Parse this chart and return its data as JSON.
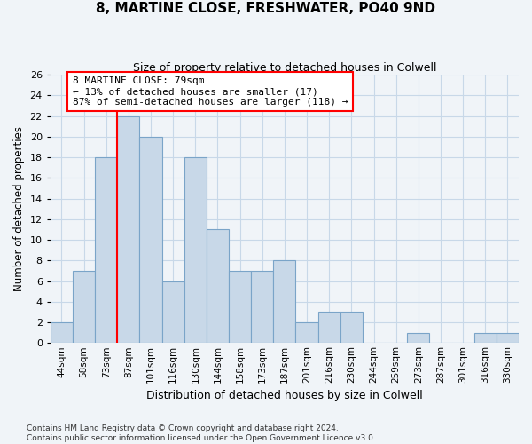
{
  "title": "8, MARTINE CLOSE, FRESHWATER, PO40 9ND",
  "subtitle": "Size of property relative to detached houses in Colwell",
  "xlabel": "Distribution of detached houses by size in Colwell",
  "ylabel": "Number of detached properties",
  "categories": [
    "44sqm",
    "58sqm",
    "73sqm",
    "87sqm",
    "101sqm",
    "116sqm",
    "130sqm",
    "144sqm",
    "158sqm",
    "173sqm",
    "187sqm",
    "201sqm",
    "216sqm",
    "230sqm",
    "244sqm",
    "259sqm",
    "273sqm",
    "287sqm",
    "301sqm",
    "316sqm",
    "330sqm"
  ],
  "values": [
    2,
    7,
    18,
    22,
    20,
    6,
    18,
    11,
    7,
    7,
    8,
    2,
    3,
    3,
    0,
    0,
    1,
    0,
    0,
    1,
    1
  ],
  "bar_color": "#c8d8e8",
  "bar_edge_color": "#7aa4c8",
  "grid_color": "#c8d8e8",
  "red_line_x": 2.5,
  "annotation_text_line1": "8 MARTINE CLOSE: 79sqm",
  "annotation_text_line2": "← 13% of detached houses are smaller (17)",
  "annotation_text_line3": "87% of semi-detached houses are larger (118) →",
  "annotation_box_color": "white",
  "annotation_box_edge_color": "red",
  "red_line_color": "red",
  "ylim": [
    0,
    26
  ],
  "yticks": [
    0,
    2,
    4,
    6,
    8,
    10,
    12,
    14,
    16,
    18,
    20,
    22,
    24,
    26
  ],
  "footer_line1": "Contains HM Land Registry data © Crown copyright and database right 2024.",
  "footer_line2": "Contains public sector information licensed under the Open Government Licence v3.0.",
  "background_color": "#f0f4f8",
  "title_fontsize": 11,
  "subtitle_fontsize": 9
}
